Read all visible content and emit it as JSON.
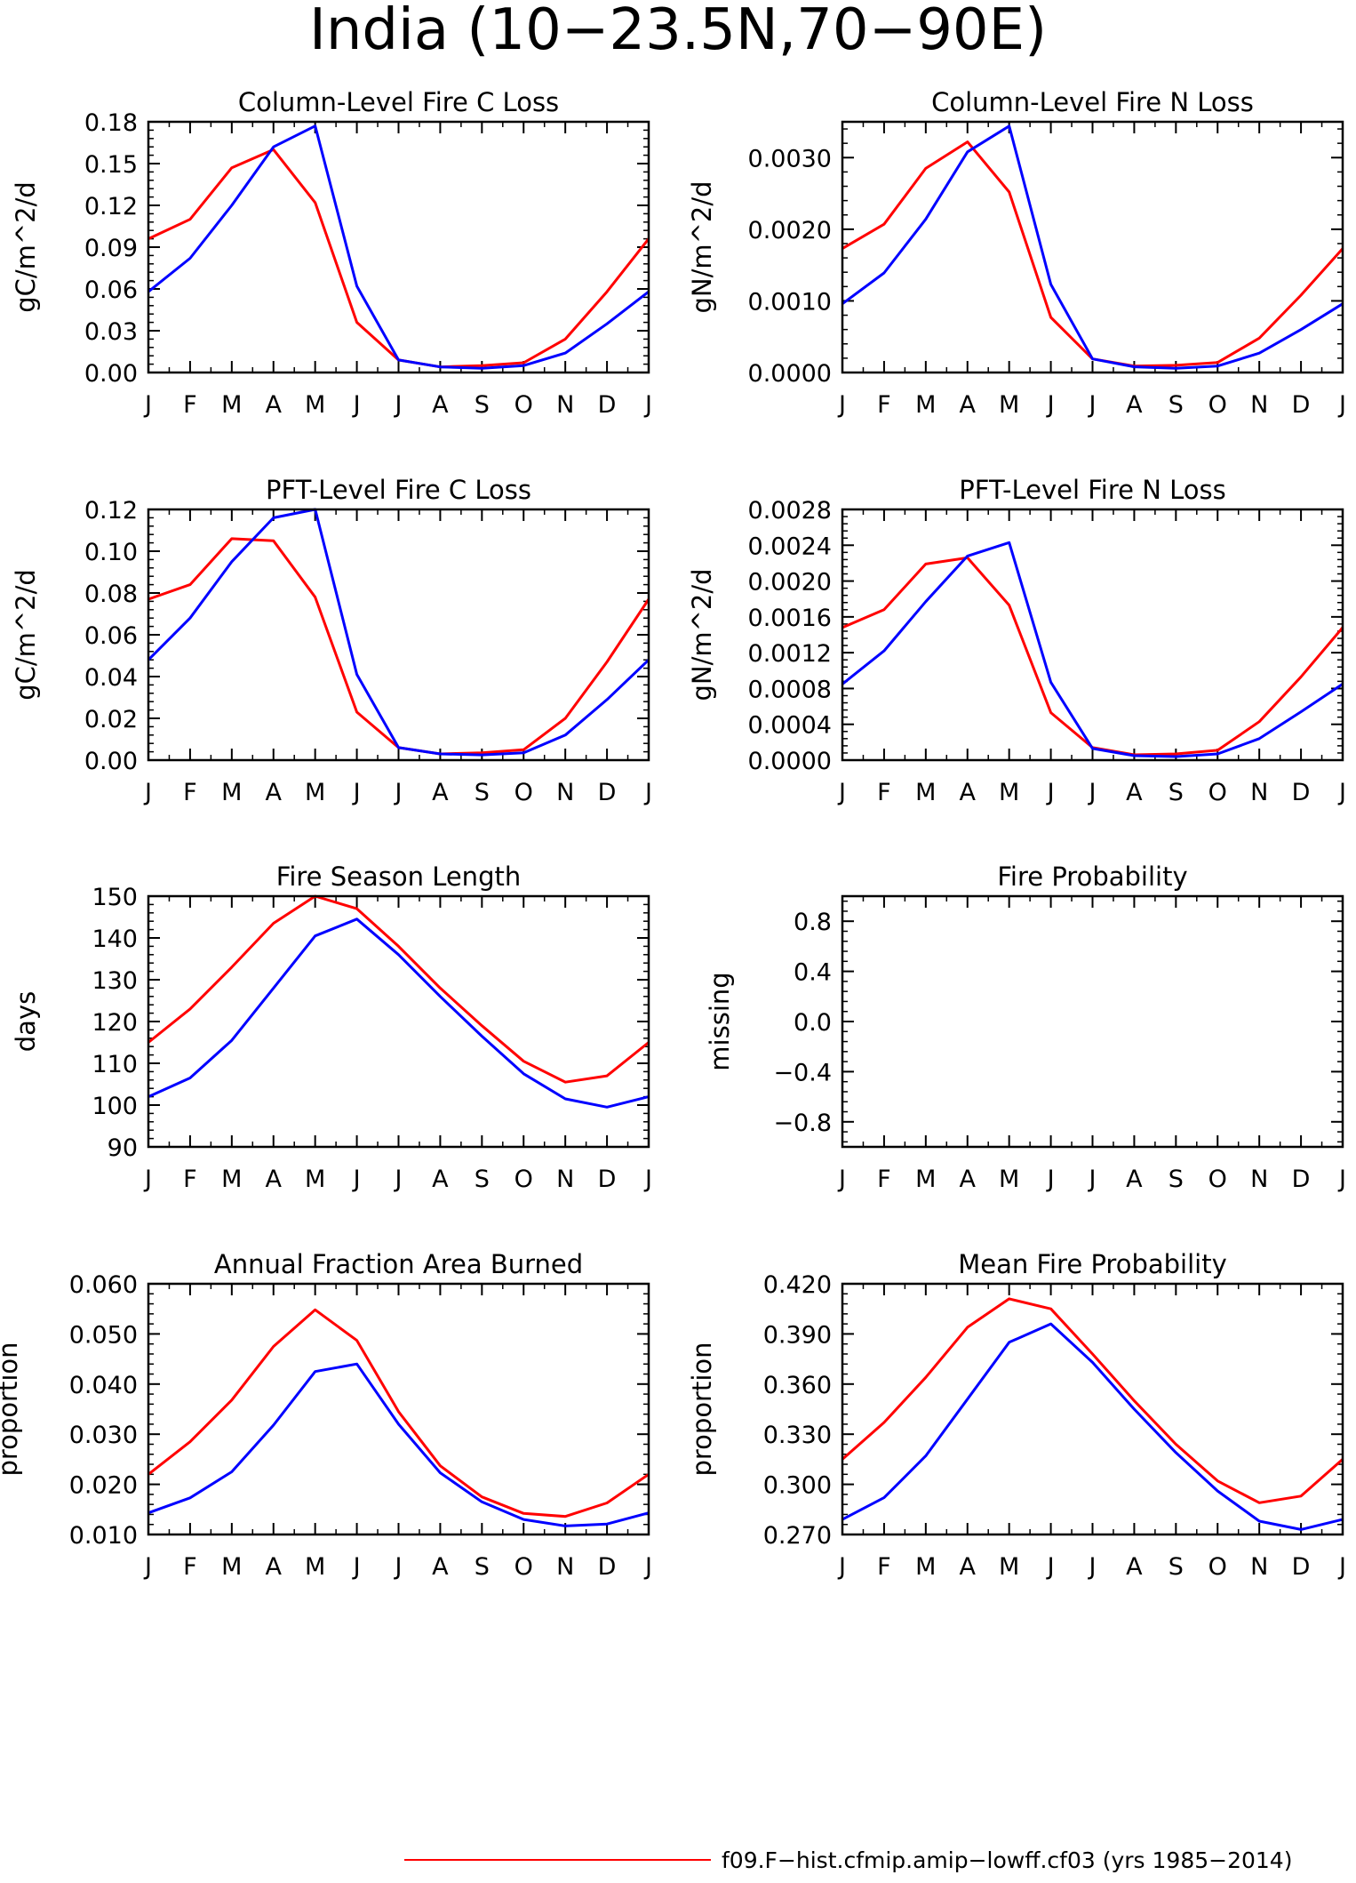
{
  "figure": {
    "title": "India (10-23.5N,70-90E)",
    "legend": [
      {
        "color": "#ff0000",
        "label": "f09.F-hist.cfmip.amip-lowff.cf03 (yrs 1985-2014)"
      }
    ]
  },
  "months": [
    "J",
    "F",
    "M",
    "A",
    "M",
    "J",
    "J",
    "A",
    "S",
    "O",
    "N",
    "D",
    "J"
  ],
  "colors": {
    "red": "#ff0000",
    "blue": "#0000ff"
  },
  "chart_data": [
    {
      "type": "line",
      "title": "Column-Level Fire C Loss",
      "ylabel": "gC/m^2/d",
      "ylim": [
        0,
        0.18
      ],
      "yticks": [
        "0.00",
        "0.03",
        "0.06",
        "0.09",
        "0.12",
        "0.15",
        "0.18"
      ],
      "series": [
        {
          "color": "#ff0000",
          "values": [
            0.096,
            0.11,
            0.147,
            0.16,
            0.122,
            0.036,
            0.009,
            0.004,
            0.005,
            0.007,
            0.024,
            0.058,
            0.096
          ]
        },
        {
          "color": "#0000ff",
          "values": [
            0.058,
            0.082,
            0.12,
            0.162,
            0.177,
            0.062,
            0.009,
            0.004,
            0.003,
            0.005,
            0.014,
            0.035,
            0.058
          ]
        }
      ]
    },
    {
      "type": "line",
      "title": "Column-Level Fire N Loss",
      "ylabel": "gN/m^2/d",
      "ylim": [
        0,
        0.0035
      ],
      "yticks": [
        "0.0000",
        "0.0010",
        "0.0020",
        "0.0030"
      ],
      "series": [
        {
          "color": "#ff0000",
          "values": [
            0.00173,
            0.00207,
            0.00285,
            0.00322,
            0.00252,
            0.00077,
            0.00019,
            9e-05,
            0.0001,
            0.00014,
            0.00048,
            0.00108,
            0.00173
          ]
        },
        {
          "color": "#0000ff",
          "values": [
            0.00096,
            0.00139,
            0.00214,
            0.00308,
            0.00344,
            0.00123,
            0.00019,
            8e-05,
            6e-05,
            9e-05,
            0.00027,
            0.0006,
            0.00096
          ]
        }
      ]
    },
    {
      "type": "line",
      "title": "PFT-Level Fire C Loss",
      "ylabel": "gC/m^2/d",
      "ylim": [
        0,
        0.12
      ],
      "yticks": [
        "0.00",
        "0.02",
        "0.04",
        "0.06",
        "0.08",
        "0.10",
        "0.12"
      ],
      "series": [
        {
          "color": "#ff0000",
          "values": [
            0.077,
            0.084,
            0.106,
            0.105,
            0.078,
            0.023,
            0.006,
            0.003,
            0.0035,
            0.005,
            0.02,
            0.047,
            0.077
          ]
        },
        {
          "color": "#0000ff",
          "values": [
            0.048,
            0.068,
            0.095,
            0.116,
            0.12,
            0.041,
            0.006,
            0.003,
            0.0025,
            0.0035,
            0.012,
            0.029,
            0.048
          ]
        }
      ]
    },
    {
      "type": "line",
      "title": "PFT-Level Fire N Loss",
      "ylabel": "gN/m^2/d",
      "ylim": [
        0,
        0.0028
      ],
      "yticks": [
        "0.0000",
        "0.0004",
        "0.0008",
        "0.0012",
        "0.0016",
        "0.0020",
        "0.0024",
        "0.0028"
      ],
      "series": [
        {
          "color": "#ff0000",
          "values": [
            0.00148,
            0.00168,
            0.00219,
            0.00226,
            0.00173,
            0.00053,
            0.00014,
            6e-05,
            7e-05,
            0.00011,
            0.00043,
            0.00093,
            0.00148
          ]
        },
        {
          "color": "#0000ff",
          "values": [
            0.00085,
            0.00122,
            0.00177,
            0.00228,
            0.00243,
            0.00087,
            0.00013,
            5e-05,
            4e-05,
            7e-05,
            0.00024,
            0.00054,
            0.00085
          ]
        }
      ]
    },
    {
      "type": "line",
      "title": "Fire Season Length",
      "ylabel": "days",
      "ylim": [
        90,
        150
      ],
      "yticks": [
        "90",
        "100",
        "110",
        "120",
        "130",
        "140",
        "150"
      ],
      "series": [
        {
          "color": "#ff0000",
          "values": [
            115,
            123,
            133,
            143.5,
            150,
            147,
            138,
            128,
            119,
            110.5,
            105.5,
            107,
            115
          ]
        },
        {
          "color": "#0000ff",
          "values": [
            102,
            106.5,
            115.5,
            128,
            140.5,
            144.5,
            136,
            126,
            116.5,
            107.5,
            101.5,
            99.5,
            102
          ]
        }
      ]
    },
    {
      "type": "line",
      "title": "Fire Probability",
      "ylabel": "missing",
      "ylim": [
        -1.0,
        1.0
      ],
      "yticks": [
        "-0.8",
        "-0.4",
        "0.0",
        "0.4",
        "0.8"
      ],
      "series": []
    },
    {
      "type": "line",
      "title": "Annual Fraction Area Burned",
      "ylabel": "proportion",
      "ylim": [
        0.01,
        0.06
      ],
      "yticks": [
        "0.010",
        "0.020",
        "0.030",
        "0.040",
        "0.050",
        "0.060"
      ],
      "series": [
        {
          "color": "#ff0000",
          "values": [
            0.022,
            0.0285,
            0.0368,
            0.0475,
            0.0548,
            0.0487,
            0.0345,
            0.0237,
            0.0175,
            0.0142,
            0.0136,
            0.0163,
            0.022
          ]
        },
        {
          "color": "#0000ff",
          "values": [
            0.0143,
            0.0173,
            0.0225,
            0.0318,
            0.0425,
            0.044,
            0.032,
            0.0223,
            0.0165,
            0.013,
            0.0117,
            0.0121,
            0.0143
          ]
        }
      ]
    },
    {
      "type": "line",
      "title": "Mean Fire Probability",
      "ylabel": "proportion",
      "ylim": [
        0.27,
        0.42
      ],
      "yticks": [
        "0.270",
        "0.300",
        "0.330",
        "0.360",
        "0.390",
        "0.420"
      ],
      "series": [
        {
          "color": "#ff0000",
          "values": [
            0.315,
            0.337,
            0.364,
            0.394,
            0.411,
            0.405,
            0.378,
            0.35,
            0.324,
            0.302,
            0.289,
            0.293,
            0.315
          ]
        },
        {
          "color": "#0000ff",
          "values": [
            0.279,
            0.292,
            0.317,
            0.351,
            0.385,
            0.396,
            0.373,
            0.345,
            0.319,
            0.296,
            0.278,
            0.273,
            0.279
          ]
        }
      ]
    }
  ]
}
